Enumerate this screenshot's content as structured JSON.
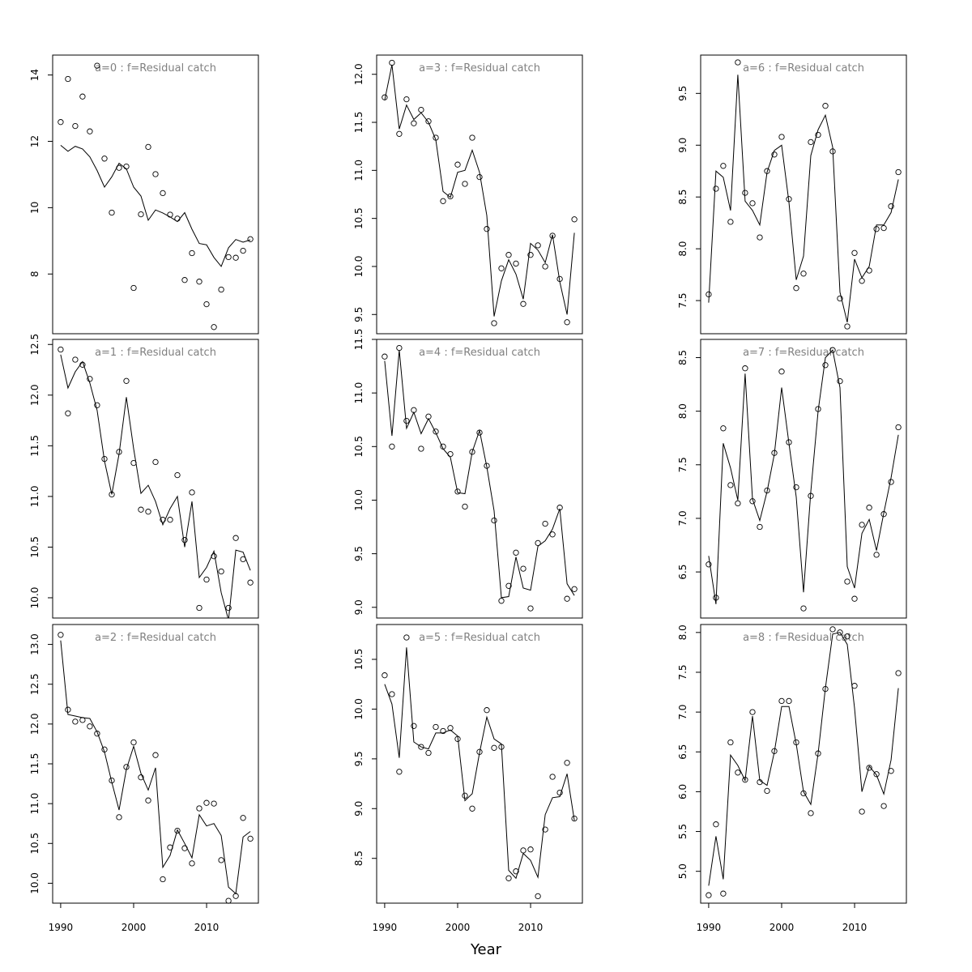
{
  "figure": {
    "xlabel": "Year"
  },
  "chart_data": [
    {
      "type": "line",
      "title": "a=0  :  f=Residual catch",
      "x": [
        1990,
        1991,
        1992,
        1993,
        1994,
        1995,
        1996,
        1997,
        1998,
        1999,
        2000,
        2001,
        2002,
        2003,
        2004,
        2005,
        2006,
        2007,
        2008,
        2009,
        2010,
        2011,
        2012,
        2013,
        2014,
        2015,
        2016
      ],
      "observed": [
        12.58,
        13.88,
        12.46,
        13.35,
        12.3,
        14.28,
        11.48,
        9.85,
        11.2,
        11.24,
        7.58,
        9.8,
        11.83,
        11.01,
        10.44,
        9.79,
        9.67,
        7.82,
        8.63,
        7.77,
        7.09,
        6.4,
        7.53,
        8.51,
        8.49,
        8.7,
        9.05
      ],
      "fitted": [
        11.88,
        11.7,
        11.85,
        11.77,
        11.53,
        11.12,
        10.62,
        10.93,
        11.34,
        11.17,
        10.62,
        10.35,
        9.62,
        9.93,
        9.84,
        9.72,
        9.58,
        9.85,
        9.35,
        8.92,
        8.88,
        8.5,
        8.23,
        8.79,
        9.04,
        8.96,
        9.03
      ],
      "yticks": [
        8,
        10,
        12,
        14
      ],
      "ylim": [
        6.2,
        14.6
      ]
    },
    {
      "type": "line",
      "title": "a=1  :  f=Residual catch",
      "x": [
        1990,
        1991,
        1992,
        1993,
        1994,
        1995,
        1996,
        1997,
        1998,
        1999,
        2000,
        2001,
        2002,
        2003,
        2004,
        2005,
        2006,
        2007,
        2008,
        2009,
        2010,
        2011,
        2012,
        2013,
        2014,
        2015,
        2016
      ],
      "observed": [
        12.45,
        11.82,
        12.35,
        12.3,
        12.16,
        11.9,
        11.37,
        11.02,
        11.44,
        12.14,
        11.33,
        10.87,
        10.85,
        11.34,
        10.77,
        10.77,
        11.21,
        10.57,
        11.04,
        9.9,
        10.18,
        10.41,
        10.26,
        9.9,
        10.59,
        10.38,
        10.15
      ],
      "fitted": [
        12.4,
        12.07,
        12.23,
        12.33,
        12.12,
        11.85,
        11.35,
        11.02,
        11.42,
        11.98,
        11.47,
        11.03,
        11.11,
        10.95,
        10.72,
        10.88,
        11.0,
        10.5,
        10.95,
        10.2,
        10.3,
        10.46,
        10.05,
        9.78,
        10.47,
        10.45,
        10.27
      ],
      "yticks": [
        10.0,
        10.5,
        11.0,
        11.5,
        12.0,
        12.5
      ],
      "ylim": [
        9.8,
        12.55
      ]
    },
    {
      "type": "line",
      "title": "a=2  :  f=Residual catch",
      "x": [
        1990,
        1991,
        1992,
        1993,
        1994,
        1995,
        1996,
        1997,
        1998,
        1999,
        2000,
        2001,
        2002,
        2003,
        2004,
        2005,
        2006,
        2007,
        2008,
        2009,
        2010,
        2011,
        2012,
        2013,
        2014,
        2015,
        2016
      ],
      "observed": [
        13.12,
        12.18,
        12.03,
        12.05,
        11.97,
        11.88,
        11.68,
        11.29,
        10.83,
        11.46,
        11.77,
        11.33,
        11.04,
        11.61,
        10.05,
        10.45,
        10.66,
        10.44,
        10.25,
        10.94,
        11.01,
        11.0,
        10.29,
        9.78,
        9.84,
        10.82,
        10.56
      ],
      "fitted": [
        13.05,
        12.12,
        12.1,
        12.08,
        12.07,
        11.9,
        11.65,
        11.27,
        10.92,
        11.43,
        11.72,
        11.38,
        11.17,
        11.45,
        10.2,
        10.35,
        10.67,
        10.5,
        10.32,
        10.86,
        10.72,
        10.75,
        10.6,
        9.95,
        9.87,
        10.58,
        10.65
      ],
      "yticks": [
        10.0,
        10.5,
        11.0,
        11.5,
        12.0,
        12.5,
        13.0
      ],
      "ylim": [
        9.75,
        13.25
      ]
    },
    {
      "type": "line",
      "title": "a=3  :  f=Residual catch",
      "x": [
        1990,
        1991,
        1992,
        1993,
        1994,
        1995,
        1996,
        1997,
        1998,
        1999,
        2000,
        2001,
        2002,
        2003,
        2004,
        2005,
        2006,
        2007,
        2008,
        2009,
        2010,
        2011,
        2012,
        2013,
        2014,
        2015,
        2016
      ],
      "observed": [
        11.76,
        12.12,
        11.38,
        11.74,
        11.49,
        11.63,
        11.51,
        11.34,
        10.68,
        10.73,
        11.06,
        10.86,
        11.34,
        10.93,
        10.39,
        9.41,
        9.98,
        10.12,
        10.03,
        9.61,
        10.12,
        10.22,
        10.0,
        10.32,
        9.87,
        9.42,
        10.49
      ],
      "fitted": [
        11.73,
        12.1,
        11.43,
        11.68,
        11.53,
        11.6,
        11.5,
        11.32,
        10.78,
        10.72,
        10.98,
        11.0,
        11.21,
        10.98,
        10.53,
        9.48,
        9.85,
        10.07,
        9.92,
        9.66,
        10.24,
        10.17,
        10.04,
        10.33,
        9.84,
        9.5,
        10.35
      ],
      "yticks": [
        9.5,
        10.0,
        10.5,
        11.0,
        11.5,
        12.0
      ],
      "ylim": [
        9.3,
        12.2
      ]
    },
    {
      "type": "line",
      "title": "a=4  :  f=Residual catch",
      "x": [
        1990,
        1991,
        1992,
        1993,
        1994,
        1995,
        1996,
        1997,
        1998,
        1999,
        2000,
        2001,
        2002,
        2003,
        2004,
        2005,
        2006,
        2007,
        2008,
        2009,
        2010,
        2011,
        2012,
        2013,
        2014,
        2015,
        2016
      ],
      "observed": [
        11.34,
        10.5,
        11.42,
        10.74,
        10.84,
        10.48,
        10.78,
        10.64,
        10.5,
        10.43,
        10.08,
        9.94,
        10.45,
        10.63,
        10.32,
        9.81,
        9.06,
        9.2,
        9.51,
        9.36,
        8.99,
        9.6,
        9.78,
        9.68,
        9.93,
        9.08,
        9.17
      ],
      "fitted": [
        11.3,
        10.6,
        11.4,
        10.67,
        10.82,
        10.62,
        10.76,
        10.63,
        10.48,
        10.4,
        10.07,
        10.06,
        10.45,
        10.65,
        10.31,
        9.9,
        9.09,
        9.1,
        9.47,
        9.18,
        9.16,
        9.57,
        9.62,
        9.73,
        9.92,
        9.22,
        9.11
      ],
      "yticks": [
        9.0,
        9.5,
        10.0,
        10.5,
        11.0,
        11.5
      ],
      "ylim": [
        8.9,
        11.5
      ]
    },
    {
      "type": "line",
      "title": "a=5  :  f=Residual catch",
      "x": [
        1990,
        1991,
        1992,
        1993,
        1994,
        1995,
        1996,
        1997,
        1998,
        1999,
        2000,
        2001,
        2002,
        2003,
        2004,
        2005,
        2006,
        2007,
        2008,
        2009,
        2010,
        2011,
        2012,
        2013,
        2014,
        2015,
        2016
      ],
      "observed": [
        10.34,
        10.15,
        9.37,
        10.72,
        9.83,
        9.62,
        9.56,
        9.82,
        9.78,
        9.81,
        9.7,
        9.13,
        9.0,
        9.57,
        9.99,
        9.61,
        9.62,
        8.3,
        8.37,
        8.58,
        8.59,
        8.12,
        8.79,
        9.32,
        9.16,
        9.46,
        8.9
      ],
      "fitted": [
        10.25,
        10.05,
        9.51,
        10.62,
        9.67,
        9.62,
        9.6,
        9.76,
        9.76,
        9.79,
        9.73,
        9.08,
        9.15,
        9.56,
        9.92,
        9.7,
        9.65,
        8.38,
        8.3,
        8.55,
        8.48,
        8.31,
        8.94,
        9.11,
        9.12,
        9.35,
        8.88
      ],
      "yticks": [
        8.5,
        9.0,
        9.5,
        10.0,
        10.5
      ],
      "ylim": [
        8.05,
        10.85
      ]
    },
    {
      "type": "line",
      "title": "a=6  :  f=Residual catch",
      "x": [
        1990,
        1991,
        1992,
        1993,
        1994,
        1995,
        1996,
        1997,
        1998,
        1999,
        2000,
        2001,
        2002,
        2003,
        2004,
        2005,
        2006,
        2007,
        2008,
        2009,
        2010,
        2011,
        2012,
        2013,
        2014,
        2015,
        2016
      ],
      "observed": [
        7.56,
        8.58,
        8.8,
        8.26,
        9.8,
        8.54,
        8.44,
        8.11,
        8.75,
        8.91,
        9.08,
        8.48,
        7.62,
        7.76,
        9.03,
        9.1,
        9.38,
        8.94,
        7.52,
        7.25,
        7.96,
        7.69,
        7.79,
        8.19,
        8.2,
        8.41,
        8.74
      ],
      "fitted": [
        7.48,
        8.75,
        8.69,
        8.37,
        9.68,
        8.46,
        8.37,
        8.23,
        8.74,
        8.95,
        9.0,
        8.45,
        7.7,
        7.93,
        8.9,
        9.15,
        9.29,
        8.98,
        7.58,
        7.29,
        7.9,
        7.72,
        7.83,
        8.23,
        8.23,
        8.35,
        8.67
      ],
      "yticks": [
        7.5,
        8.0,
        8.5,
        9.0,
        9.5
      ],
      "ylim": [
        7.18,
        9.87
      ]
    },
    {
      "type": "line",
      "title": "a=7  :  f=Residual catch",
      "x": [
        1990,
        1991,
        1992,
        1993,
        1994,
        1995,
        1996,
        1997,
        1998,
        1999,
        2000,
        2001,
        2002,
        2003,
        2004,
        2005,
        2006,
        2007,
        2008,
        2009,
        2010,
        2011,
        2012,
        2013,
        2014,
        2015,
        2016
      ],
      "observed": [
        6.57,
        6.26,
        7.84,
        7.31,
        7.14,
        8.4,
        7.16,
        6.92,
        7.26,
        7.61,
        8.37,
        7.71,
        7.29,
        6.16,
        7.21,
        8.02,
        8.43,
        8.57,
        8.28,
        6.41,
        6.25,
        6.94,
        7.1,
        6.66,
        7.04,
        7.34,
        7.85
      ],
      "fitted": [
        6.65,
        6.2,
        7.7,
        7.47,
        7.17,
        8.35,
        7.18,
        6.98,
        7.25,
        7.6,
        8.22,
        7.7,
        7.2,
        6.31,
        7.25,
        8.0,
        8.5,
        8.57,
        8.22,
        6.55,
        6.35,
        6.86,
        6.99,
        6.7,
        7.05,
        7.38,
        7.78
      ],
      "yticks": [
        6.5,
        7.0,
        7.5,
        8.0,
        8.5
      ],
      "ylim": [
        6.07,
        8.67
      ]
    },
    {
      "type": "line",
      "title": "a=8  :  f=Residual catch",
      "x": [
        1990,
        1991,
        1992,
        1993,
        1994,
        1995,
        1996,
        1997,
        1998,
        1999,
        2000,
        2001,
        2002,
        2003,
        2004,
        2005,
        2006,
        2007,
        2008,
        2009,
        2010,
        2011,
        2012,
        2013,
        2014,
        2015,
        2016
      ],
      "observed": [
        4.7,
        5.59,
        4.72,
        6.62,
        6.24,
        6.15,
        7.0,
        6.12,
        6.01,
        6.51,
        7.14,
        7.14,
        6.62,
        5.98,
        5.73,
        6.48,
        7.29,
        8.04,
        8.0,
        7.95,
        7.33,
        5.75,
        6.3,
        6.22,
        5.82,
        6.26,
        7.49
      ],
      "fitted": [
        4.82,
        5.44,
        4.9,
        6.46,
        6.33,
        6.14,
        6.95,
        6.14,
        6.08,
        6.5,
        7.07,
        7.07,
        6.6,
        6.0,
        5.84,
        6.48,
        7.3,
        7.98,
        8.0,
        7.85,
        7.05,
        6.0,
        6.32,
        6.21,
        5.97,
        6.4,
        7.3
      ],
      "yticks": [
        5.0,
        5.5,
        6.0,
        6.5,
        7.0,
        7.5,
        8.0
      ],
      "ylim": [
        4.6,
        8.1
      ]
    }
  ],
  "xaxis": {
    "ticks": [
      1990,
      2000,
      2010
    ],
    "xlim": [
      1988.9,
      2017.1
    ]
  }
}
